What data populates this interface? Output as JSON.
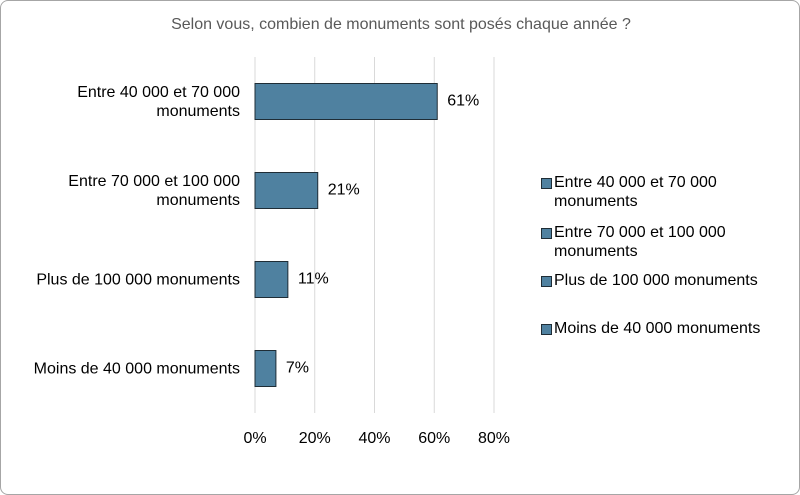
{
  "chart_data": {
    "type": "bar",
    "orientation": "horizontal",
    "title": "Selon vous, combien de monuments sont posés chaque année ?",
    "categories": [
      "Entre 40 000 et 70 000 monuments",
      "Entre 70 000 et 100 000 monuments",
      "Plus de 100 000 monuments",
      "Moins de 40 000 monuments"
    ],
    "values": [
      61,
      21,
      11,
      7
    ],
    "value_labels": [
      "61%",
      "21%",
      "11%",
      "7%"
    ],
    "color": "#4f81a0",
    "xlim": [
      0,
      80
    ],
    "xticks": [
      {
        "value": 0,
        "label": "0%"
      },
      {
        "value": 20,
        "label": "20%"
      },
      {
        "value": 40,
        "label": "40%"
      },
      {
        "value": 60,
        "label": "60%"
      },
      {
        "value": 80,
        "label": "80%"
      }
    ],
    "grid": true,
    "legend": "right"
  }
}
